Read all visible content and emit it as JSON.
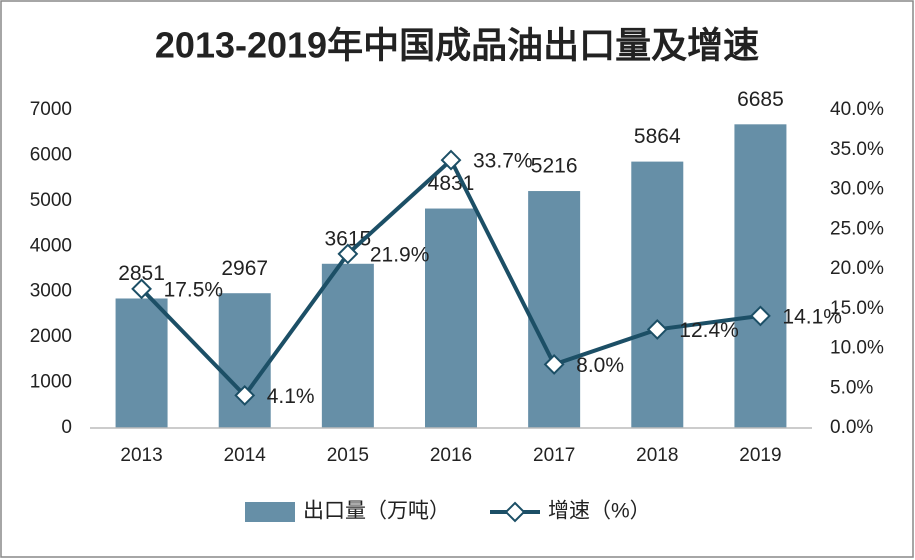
{
  "chart_data": {
    "type": "bar-line",
    "title": "2013-2019年中国成品油出口量及增速",
    "categories": [
      "2013",
      "2014",
      "2015",
      "2016",
      "2017",
      "2018",
      "2019"
    ],
    "series": [
      {
        "name": "出口量（万吨）",
        "type": "bar",
        "color": "#668fa7",
        "axis": "y",
        "values": [
          2851,
          2967,
          3615,
          4831,
          5216,
          5864,
          6685
        ]
      },
      {
        "name": "增速（%）",
        "type": "line",
        "color": "#1c4f66",
        "axis": "y2",
        "values": [
          17.5,
          4.1,
          21.9,
          33.7,
          8.0,
          12.4,
          14.1
        ],
        "value_labels": [
          "17.5%",
          "4.1%",
          "21.9%",
          "33.7%",
          "8.0%",
          "12.4%",
          "14.1%"
        ]
      }
    ],
    "ylim": [
      0,
      7000
    ],
    "yticks": [
      0,
      1000,
      2000,
      3000,
      4000,
      5000,
      6000,
      7000
    ],
    "y2lim": [
      0,
      40
    ],
    "y2ticks": [
      {
        "value": 0,
        "label": "0.0%"
      },
      {
        "value": 5,
        "label": "5.0%"
      },
      {
        "value": 10,
        "label": "10.0%"
      },
      {
        "value": 15,
        "label": "15.0%"
      },
      {
        "value": 20,
        "label": "20.0%"
      },
      {
        "value": 25,
        "label": "25.0%"
      },
      {
        "value": 30,
        "label": "30.0%"
      },
      {
        "value": 35,
        "label": "35.0%"
      },
      {
        "value": 40,
        "label": "40.0%"
      }
    ],
    "grid": false,
    "legend": "bottom"
  }
}
